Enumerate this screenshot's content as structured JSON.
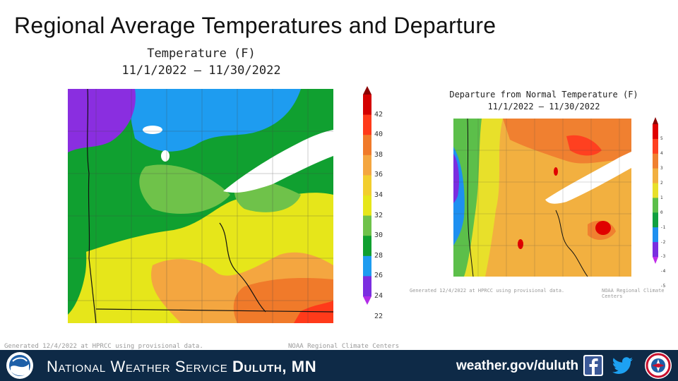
{
  "slide": {
    "title": "Regional Average Temperatures and Departure"
  },
  "map_left": {
    "title": "Temperature (F)",
    "period": "11/1/2022 – 11/30/2022",
    "colorbar_ticks": [
      "42",
      "40",
      "38",
      "36",
      "34",
      "32",
      "30",
      "28",
      "26",
      "24",
      "22"
    ],
    "colorbar_colors": [
      "#8b0000",
      "#d40000",
      "#ff3a1a",
      "#f07a2a",
      "#f4a640",
      "#f2ce2e",
      "#e6e61a",
      "#6fc24a",
      "#10a030",
      "#1e9cf0",
      "#7b2ee0",
      "#b22ce8"
    ],
    "generated": "Generated 12/4/2022 at HPRCC using provisional data.",
    "credit": "NOAA Regional Climate Centers"
  },
  "map_right": {
    "title": "Departure from Normal Temperature (F)",
    "period": "11/1/2022 – 11/30/2022",
    "colorbar_ticks": [
      "5",
      "4",
      "3",
      "2",
      "1",
      "0",
      "-1",
      "-2",
      "-3",
      "-4",
      "-5"
    ],
    "colorbar_colors": [
      "#8b0000",
      "#e00000",
      "#ff4020",
      "#f08030",
      "#f2b040",
      "#e8e02a",
      "#5cbf4a",
      "#10a040",
      "#1e90f0",
      "#7b2ee0",
      "#c02ce8"
    ],
    "generated": "Generated 12/4/2022 at HPRCC using provisional data.",
    "credit": "NOAA Regional Climate Centers"
  },
  "footer": {
    "agency": "National Weather Service",
    "office": "Duluth, MN",
    "url": "weather.gov/duluth",
    "facebook_icon": "facebook-icon",
    "twitter_icon": "twitter-icon",
    "noaa_logo": "noaa-logo",
    "nws_logo": "nws-logo",
    "bg_color": "#0e2a47"
  }
}
